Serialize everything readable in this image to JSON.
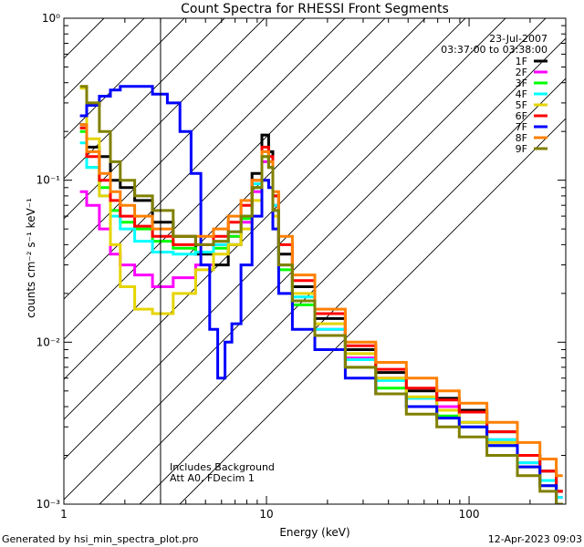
{
  "chart_data": {
    "type": "line",
    "title": "Count Spectra for RHESSI Front Segments",
    "xlabel": "Energy (keV)",
    "ylabel": "counts cm⁻² s⁻¹ keV⁻¹",
    "xscale": "log",
    "yscale": "log",
    "xlim": [
      1,
      300
    ],
    "ylim": [
      0.001,
      1
    ],
    "x_ticks": [
      {
        "value": 1,
        "label": "1"
      },
      {
        "value": 10,
        "label": "10"
      },
      {
        "value": 100,
        "label": "100"
      }
    ],
    "y_ticks": [
      {
        "value": 1,
        "label": "10⁰"
      },
      {
        "value": 0.1,
        "label": "10⁻¹"
      },
      {
        "value": 0.01,
        "label": "10⁻²"
      },
      {
        "value": 0.001,
        "label": "10⁻³"
      }
    ],
    "hatched_region_xmax": 3,
    "legend_position": "top-right",
    "date": "23-Jul-2007",
    "time_range": "03:37:00 to 03:38:00",
    "annotations": [
      "Includes Background",
      "Att A0, FDecim 1"
    ],
    "series": [
      {
        "name": "1F",
        "color": "#000000",
        "points": [
          [
            1.2,
            0.22
          ],
          [
            1.4,
            0.16
          ],
          [
            1.6,
            0.14
          ],
          [
            1.8,
            0.1
          ],
          [
            2.0,
            0.09
          ],
          [
            2.5,
            0.075
          ],
          [
            3.0,
            0.055
          ],
          [
            4.0,
            0.045
          ],
          [
            5.0,
            0.035
          ],
          [
            6.0,
            0.03
          ],
          [
            7.0,
            0.04
          ],
          [
            8.0,
            0.06
          ],
          [
            9.0,
            0.11
          ],
          [
            10.0,
            0.19
          ],
          [
            10.5,
            0.15
          ],
          [
            11.0,
            0.08
          ],
          [
            12.0,
            0.035
          ],
          [
            15.0,
            0.022
          ],
          [
            20.0,
            0.014
          ],
          [
            30.0,
            0.009
          ],
          [
            40.0,
            0.0065
          ],
          [
            60.0,
            0.005
          ],
          [
            80.0,
            0.0045
          ],
          [
            100.0,
            0.0038
          ],
          [
            150.0,
            0.0028
          ],
          [
            200.0,
            0.002
          ],
          [
            250.0,
            0.0016
          ],
          [
            290.0,
            0.0012
          ]
        ]
      },
      {
        "name": "2F",
        "color": "#ff00ff",
        "points": [
          [
            1.2,
            0.085
          ],
          [
            1.4,
            0.07
          ],
          [
            1.6,
            0.05
          ],
          [
            1.8,
            0.035
          ],
          [
            2.0,
            0.03
          ],
          [
            2.5,
            0.026
          ],
          [
            3.0,
            0.022
          ],
          [
            4.0,
            0.025
          ],
          [
            5.0,
            0.03
          ],
          [
            6.0,
            0.04
          ],
          [
            7.0,
            0.045
          ],
          [
            8.0,
            0.055
          ],
          [
            9.0,
            0.085
          ],
          [
            10.0,
            0.13
          ],
          [
            10.5,
            0.12
          ],
          [
            11.0,
            0.07
          ],
          [
            12.0,
            0.03
          ],
          [
            15.0,
            0.018
          ],
          [
            20.0,
            0.012
          ],
          [
            30.0,
            0.008
          ],
          [
            40.0,
            0.006
          ],
          [
            60.0,
            0.0045
          ],
          [
            80.0,
            0.004
          ],
          [
            100.0,
            0.0032
          ],
          [
            150.0,
            0.0025
          ],
          [
            200.0,
            0.0018
          ],
          [
            250.0,
            0.0014
          ],
          [
            290.0,
            0.0011
          ]
        ]
      },
      {
        "name": "3F",
        "color": "#00ff00",
        "points": [
          [
            1.2,
            0.2
          ],
          [
            1.4,
            0.12
          ],
          [
            1.6,
            0.09
          ],
          [
            1.8,
            0.065
          ],
          [
            2.0,
            0.055
          ],
          [
            2.5,
            0.05
          ],
          [
            3.0,
            0.042
          ],
          [
            4.0,
            0.038
          ],
          [
            5.0,
            0.036
          ],
          [
            6.0,
            0.038
          ],
          [
            7.0,
            0.045
          ],
          [
            8.0,
            0.058
          ],
          [
            9.0,
            0.09
          ],
          [
            10.0,
            0.14
          ],
          [
            10.5,
            0.12
          ],
          [
            11.0,
            0.065
          ],
          [
            12.0,
            0.028
          ],
          [
            15.0,
            0.017
          ],
          [
            20.0,
            0.011
          ],
          [
            30.0,
            0.007
          ],
          [
            40.0,
            0.0052
          ],
          [
            60.0,
            0.004
          ],
          [
            80.0,
            0.0035
          ],
          [
            100.0,
            0.003
          ],
          [
            150.0,
            0.0023
          ],
          [
            200.0,
            0.0017
          ],
          [
            250.0,
            0.0013
          ],
          [
            290.0,
            0.001
          ]
        ]
      },
      {
        "name": "4F",
        "color": "#00ffff",
        "points": [
          [
            1.2,
            0.17
          ],
          [
            1.4,
            0.12
          ],
          [
            1.6,
            0.08
          ],
          [
            1.8,
            0.06
          ],
          [
            2.0,
            0.05
          ],
          [
            2.5,
            0.042
          ],
          [
            3.0,
            0.036
          ],
          [
            4.0,
            0.035
          ],
          [
            5.0,
            0.036
          ],
          [
            6.0,
            0.04
          ],
          [
            7.0,
            0.048
          ],
          [
            8.0,
            0.06
          ],
          [
            9.0,
            0.095
          ],
          [
            10.0,
            0.15
          ],
          [
            10.5,
            0.13
          ],
          [
            11.0,
            0.07
          ],
          [
            12.0,
            0.03
          ],
          [
            15.0,
            0.019
          ],
          [
            20.0,
            0.012
          ],
          [
            30.0,
            0.0078
          ],
          [
            40.0,
            0.0058
          ],
          [
            60.0,
            0.0045
          ],
          [
            80.0,
            0.0038
          ],
          [
            100.0,
            0.0032
          ],
          [
            150.0,
            0.0025
          ],
          [
            200.0,
            0.0018
          ],
          [
            250.0,
            0.0014
          ],
          [
            290.0,
            0.0011
          ]
        ]
      },
      {
        "name": "5F",
        "color": "#e6d400",
        "points": [
          [
            1.2,
            0.37
          ],
          [
            1.4,
            0.18
          ],
          [
            1.6,
            0.08
          ],
          [
            1.8,
            0.04
          ],
          [
            2.0,
            0.022
          ],
          [
            2.5,
            0.016
          ],
          [
            3.0,
            0.015
          ],
          [
            4.0,
            0.02
          ],
          [
            5.0,
            0.028
          ],
          [
            6.0,
            0.035
          ],
          [
            7.0,
            0.04
          ],
          [
            8.0,
            0.05
          ],
          [
            9.0,
            0.075
          ],
          [
            10.0,
            0.1
          ],
          [
            10.5,
            0.09
          ],
          [
            11.0,
            0.06
          ],
          [
            12.0,
            0.03
          ],
          [
            15.0,
            0.02
          ],
          [
            20.0,
            0.013
          ],
          [
            30.0,
            0.0085
          ],
          [
            40.0,
            0.006
          ],
          [
            60.0,
            0.0046
          ],
          [
            80.0,
            0.0038
          ],
          [
            100.0,
            0.0032
          ],
          [
            150.0,
            0.0024
          ],
          [
            200.0,
            0.0017
          ],
          [
            250.0,
            0.0013
          ],
          [
            290.0,
            0.001
          ]
        ]
      },
      {
        "name": "6F",
        "color": "#ff0000",
        "points": [
          [
            1.2,
            0.21
          ],
          [
            1.4,
            0.14
          ],
          [
            1.6,
            0.1
          ],
          [
            1.8,
            0.075
          ],
          [
            2.0,
            0.06
          ],
          [
            2.5,
            0.052
          ],
          [
            3.0,
            0.045
          ],
          [
            4.0,
            0.04
          ],
          [
            5.0,
            0.04
          ],
          [
            6.0,
            0.045
          ],
          [
            7.0,
            0.055
          ],
          [
            8.0,
            0.07
          ],
          [
            9.0,
            0.1
          ],
          [
            10.0,
            0.16
          ],
          [
            10.5,
            0.14
          ],
          [
            11.0,
            0.08
          ],
          [
            12.0,
            0.04
          ],
          [
            15.0,
            0.024
          ],
          [
            20.0,
            0.015
          ],
          [
            30.0,
            0.0095
          ],
          [
            40.0,
            0.0068
          ],
          [
            60.0,
            0.0052
          ],
          [
            80.0,
            0.0044
          ],
          [
            100.0,
            0.0037
          ],
          [
            150.0,
            0.0028
          ],
          [
            200.0,
            0.002
          ],
          [
            250.0,
            0.0016
          ],
          [
            290.0,
            0.0012
          ]
        ]
      },
      {
        "name": "7F",
        "color": "#0000ff",
        "points": [
          [
            1.2,
            0.25
          ],
          [
            1.4,
            0.29
          ],
          [
            1.6,
            0.33
          ],
          [
            1.8,
            0.36
          ],
          [
            2.0,
            0.38
          ],
          [
            2.5,
            0.38
          ],
          [
            3.0,
            0.34
          ],
          [
            3.5,
            0.3
          ],
          [
            4.0,
            0.2
          ],
          [
            4.5,
            0.11
          ],
          [
            5.0,
            0.03
          ],
          [
            5.5,
            0.012
          ],
          [
            6.0,
            0.006
          ],
          [
            6.5,
            0.01
          ],
          [
            7.0,
            0.013
          ],
          [
            8.0,
            0.03
          ],
          [
            9.0,
            0.06
          ],
          [
            10.0,
            0.1
          ],
          [
            10.5,
            0.09
          ],
          [
            11.0,
            0.05
          ],
          [
            12.0,
            0.02
          ],
          [
            15.0,
            0.012
          ],
          [
            20.0,
            0.009
          ],
          [
            30.0,
            0.006
          ],
          [
            40.0,
            0.0048
          ],
          [
            60.0,
            0.004
          ],
          [
            80.0,
            0.0034
          ],
          [
            100.0,
            0.003
          ],
          [
            150.0,
            0.0023
          ],
          [
            200.0,
            0.0017
          ],
          [
            250.0,
            0.0013
          ],
          [
            290.0,
            0.001
          ]
        ]
      },
      {
        "name": "8F",
        "color": "#ff8000",
        "points": [
          [
            1.2,
            0.22
          ],
          [
            1.4,
            0.15
          ],
          [
            1.6,
            0.11
          ],
          [
            1.8,
            0.085
          ],
          [
            2.0,
            0.07
          ],
          [
            2.5,
            0.06
          ],
          [
            3.0,
            0.05
          ],
          [
            4.0,
            0.045
          ],
          [
            5.0,
            0.045
          ],
          [
            6.0,
            0.05
          ],
          [
            7.0,
            0.06
          ],
          [
            8.0,
            0.075
          ],
          [
            9.0,
            0.1
          ],
          [
            10.0,
            0.15
          ],
          [
            10.5,
            0.13
          ],
          [
            11.0,
            0.085
          ],
          [
            12.0,
            0.045
          ],
          [
            15.0,
            0.026
          ],
          [
            20.0,
            0.016
          ],
          [
            30.0,
            0.01
          ],
          [
            40.0,
            0.0075
          ],
          [
            60.0,
            0.006
          ],
          [
            80.0,
            0.005
          ],
          [
            100.0,
            0.0042
          ],
          [
            150.0,
            0.0032
          ],
          [
            200.0,
            0.0024
          ],
          [
            250.0,
            0.0019
          ],
          [
            290.0,
            0.0015
          ]
        ]
      },
      {
        "name": "9F",
        "color": "#808000",
        "points": [
          [
            1.2,
            0.38
          ],
          [
            1.4,
            0.3
          ],
          [
            1.6,
            0.2
          ],
          [
            1.8,
            0.13
          ],
          [
            2.0,
            0.1
          ],
          [
            2.5,
            0.08
          ],
          [
            3.0,
            0.065
          ],
          [
            4.0,
            0.045
          ],
          [
            5.0,
            0.04
          ],
          [
            6.0,
            0.042
          ],
          [
            7.0,
            0.048
          ],
          [
            8.0,
            0.06
          ],
          [
            9.0,
            0.09
          ],
          [
            10.0,
            0.14
          ],
          [
            10.5,
            0.12
          ],
          [
            11.0,
            0.065
          ],
          [
            12.0,
            0.03
          ],
          [
            15.0,
            0.018
          ],
          [
            20.0,
            0.011
          ],
          [
            30.0,
            0.007
          ],
          [
            40.0,
            0.0048
          ],
          [
            60.0,
            0.0036
          ],
          [
            80.0,
            0.003
          ],
          [
            100.0,
            0.0026
          ],
          [
            150.0,
            0.002
          ],
          [
            200.0,
            0.0015
          ],
          [
            250.0,
            0.0012
          ],
          [
            290.0,
            0.001
          ]
        ]
      }
    ]
  },
  "footer": {
    "generated_by": "Generated by hsi_min_spectra_plot.pro",
    "timestamp": "12-Apr-2023 09:03"
  }
}
